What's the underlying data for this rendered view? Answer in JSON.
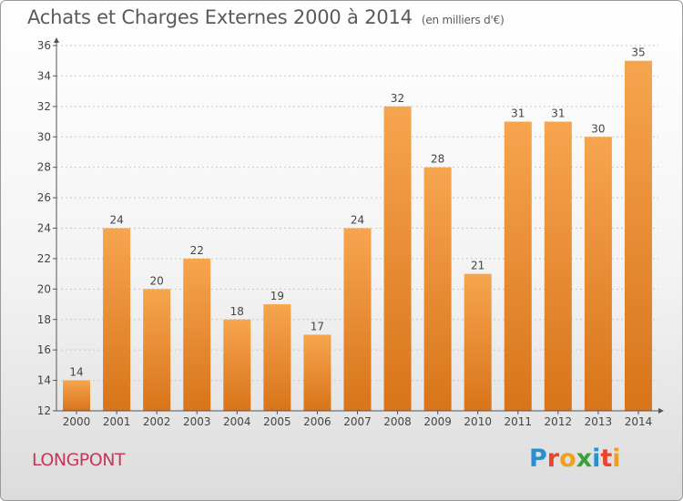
{
  "header": {
    "title": "Achats et Charges Externes 2000 à 2014",
    "unit": "(en milliers d'€)"
  },
  "footer": {
    "city": "LONGPONT",
    "logo_text": "Proxiti",
    "logo_colors": [
      "#2a8fd0",
      "#e8452c",
      "#f0a020",
      "#3aa03a",
      "#2a8fd0",
      "#e8452c",
      "#f0a020"
    ]
  },
  "colors": {
    "bar_top": "#f6a54f",
    "bar_bottom": "#d8741a",
    "grid": "#c8c8c8",
    "axis": "#555555"
  },
  "chart_data": {
    "type": "bar",
    "title": "Achats et Charges Externes 2000 à 2014",
    "subtitle": "(en milliers d'€)",
    "xlabel": "",
    "ylabel": "",
    "categories": [
      "2000",
      "2001",
      "2002",
      "2003",
      "2004",
      "2005",
      "2006",
      "2007",
      "2008",
      "2009",
      "2010",
      "2011",
      "2012",
      "2013",
      "2014"
    ],
    "values": [
      14,
      24,
      20,
      22,
      18,
      19,
      17,
      24,
      32,
      28,
      21,
      31,
      31,
      30,
      35
    ],
    "ylim": [
      12,
      36
    ],
    "yticks": [
      12,
      14,
      16,
      18,
      20,
      22,
      24,
      26,
      28,
      30,
      32,
      34,
      36
    ],
    "grid": true,
    "data_labels": true
  }
}
